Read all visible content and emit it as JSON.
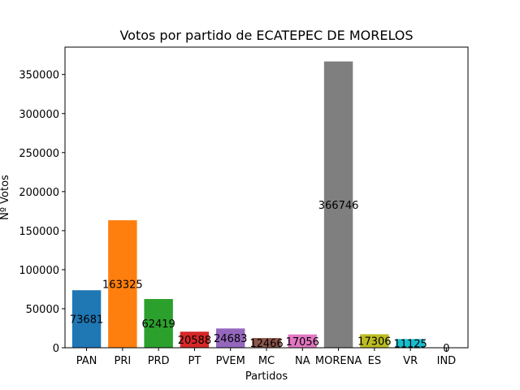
{
  "chart_data": {
    "type": "bar",
    "title": "Votos por partido de ECATEPEC DE MORELOS",
    "xlabel": "Partidos",
    "ylabel": "Nº Votos",
    "categories": [
      "PAN",
      "PRI",
      "PRD",
      "PT",
      "PVEM",
      "MC",
      "NA",
      "MORENA",
      "ES",
      "VR",
      "IND"
    ],
    "values": [
      73681,
      163325,
      62419,
      20588,
      24683,
      12466,
      17056,
      366746,
      17306,
      11125,
      0
    ],
    "data_labels": [
      "73681",
      "163325",
      "62419",
      "20588",
      "24683",
      "12466",
      "17056",
      "366746",
      "17306",
      "11125",
      "0"
    ],
    "colors": [
      "#1f77b4",
      "#ff7f0e",
      "#2ca02c",
      "#d62728",
      "#9467bd",
      "#8c564b",
      "#e377c2",
      "#7f7f7f",
      "#bcbd22",
      "#17becf",
      "#1f77b4"
    ],
    "ylim": [
      0,
      385083
    ],
    "yticks": [
      0,
      50000,
      100000,
      150000,
      200000,
      250000,
      300000,
      350000
    ],
    "ytick_labels": [
      "0",
      "50000",
      "100000",
      "150000",
      "200000",
      "250000",
      "300000",
      "350000"
    ],
    "grid": false,
    "legend": "none"
  }
}
